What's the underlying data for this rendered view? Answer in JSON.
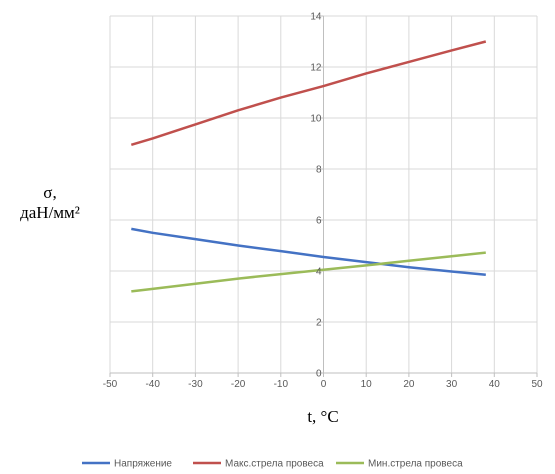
{
  "chart_data": {
    "type": "line",
    "xlabel": "t, °C",
    "ylabel_line1": "σ,",
    "ylabel_line2": "даН/мм²",
    "xlim": [
      -50,
      50
    ],
    "ylim": [
      0,
      14
    ],
    "x_ticks": [
      -50,
      -40,
      -30,
      -20,
      -10,
      0,
      10,
      20,
      30,
      40,
      50
    ],
    "y_ticks": [
      0,
      2,
      4,
      6,
      8,
      10,
      12,
      14
    ],
    "grid": true,
    "legend_position": "bottom",
    "series": [
      {
        "name": "Напряжение",
        "color": "#4472C4",
        "x": [
          -45,
          -40,
          -30,
          -20,
          -10,
          0,
          10,
          20,
          30,
          38
        ],
        "y": [
          5.65,
          5.5,
          5.25,
          5.0,
          4.78,
          4.55,
          4.35,
          4.15,
          3.98,
          3.85
        ]
      },
      {
        "name": "Макс.стрела провеса",
        "color": "#C0504D",
        "x": [
          -45,
          -40,
          -30,
          -20,
          -10,
          0,
          10,
          20,
          30,
          38
        ],
        "y": [
          8.95,
          9.2,
          9.75,
          10.3,
          10.8,
          11.25,
          11.75,
          12.2,
          12.65,
          13.0
        ]
      },
      {
        "name": "Мин.стрела провеса",
        "color": "#9BBB59",
        "x": [
          -45,
          -40,
          -30,
          -20,
          -10,
          0,
          10,
          20,
          30,
          38
        ],
        "y": [
          3.2,
          3.3,
          3.5,
          3.7,
          3.88,
          4.05,
          4.22,
          4.4,
          4.58,
          4.72
        ]
      }
    ]
  }
}
